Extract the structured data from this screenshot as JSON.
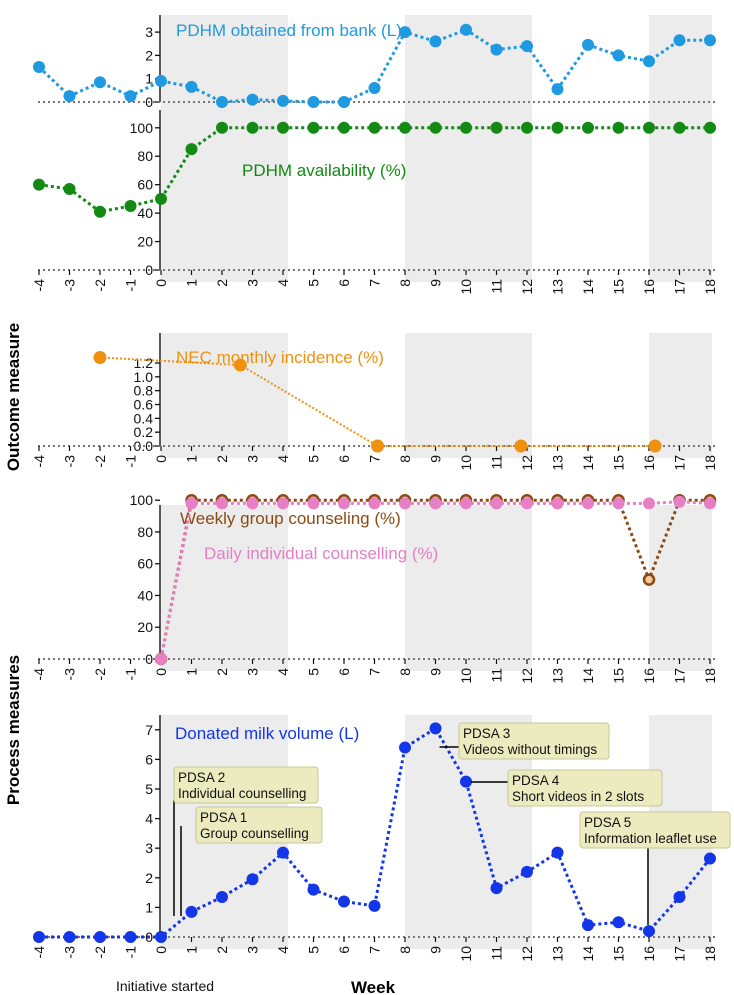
{
  "figure": {
    "ylabel_outcome": "Outcome measure",
    "ylabel_process": "Process measures",
    "xlabel": "Week",
    "initiative_label": "Initiative started",
    "x_ticks": [
      -4,
      -3,
      -2,
      -1,
      0,
      1,
      2,
      3,
      4,
      5,
      6,
      7,
      8,
      9,
      10,
      11,
      12,
      13,
      14,
      15,
      16,
      17,
      18
    ],
    "shaded_weeks": [
      [
        0,
        4
      ],
      [
        8,
        12
      ],
      [
        16,
        18
      ]
    ],
    "colors": {
      "shade": "#ececec",
      "pdhm_bank": "#1f9ae0",
      "pdhm_availability": "#138a13",
      "nec": "#f0900f",
      "weekly_group": "#8b4a12",
      "daily_individual": "#e67fc4",
      "donated": "#1336e8"
    }
  },
  "chart_data": [
    {
      "type": "line",
      "title": "PDHM obtained from bank (L)",
      "ylim": [
        0,
        3.6
      ],
      "y_ticks": [
        0,
        1,
        2,
        3
      ],
      "show_x_ticks": false,
      "series": [
        {
          "x": [
            -4,
            -3,
            -2,
            -1,
            0,
            1,
            2,
            3,
            4,
            5,
            6,
            7,
            8,
            9,
            10,
            11,
            12,
            13,
            14,
            15,
            16,
            17,
            18
          ],
          "values": [
            1.5,
            0.25,
            0.85,
            0.25,
            0.9,
            0.65,
            0.0,
            0.1,
            0.05,
            0.0,
            0.0,
            0.6,
            3.0,
            2.6,
            3.1,
            2.25,
            2.4,
            0.55,
            2.45,
            2.0,
            1.75,
            2.65,
            2.65
          ]
        }
      ]
    },
    {
      "type": "line",
      "title": "PDHM availability (%)",
      "ylim": [
        0,
        105
      ],
      "y_ticks": [
        0,
        20,
        40,
        60,
        80,
        100
      ],
      "show_x_ticks": true,
      "series": [
        {
          "x": [
            -4,
            -3,
            -2,
            -1,
            0,
            1,
            2,
            3,
            4,
            5,
            6,
            7,
            8,
            9,
            10,
            11,
            12,
            13,
            14,
            15,
            16,
            17,
            18
          ],
          "values": [
            60,
            57,
            41,
            45,
            50,
            85,
            100,
            100,
            100,
            100,
            100,
            100,
            100,
            100,
            100,
            100,
            100,
            100,
            100,
            100,
            100,
            100,
            100
          ]
        }
      ]
    },
    {
      "type": "line",
      "title": "NEC monthly incidence (%)",
      "ylim": [
        0,
        1.45
      ],
      "y_ticks": [
        0.0,
        0.2,
        0.4,
        0.6,
        0.8,
        1.0,
        1.2
      ],
      "y_tick_labels": [
        "0.0",
        "0.2",
        "0.4",
        "0.6",
        "0.8",
        "1.0",
        "1.2"
      ],
      "show_x_ticks": true,
      "series": [
        {
          "x": [
            -2,
            2.6,
            7.1,
            11.8,
            16.2
          ],
          "values": [
            1.28,
            1.17,
            0.0,
            0.0,
            0.0
          ]
        }
      ]
    },
    {
      "type": "line",
      "title": "Weekly group counseling (%)",
      "ylim": [
        0,
        105
      ],
      "y_ticks": [
        0,
        20,
        40,
        60,
        80,
        100
      ],
      "show_x_ticks": true,
      "series": [
        {
          "name": "Weekly group counseling (%)",
          "x": [
            0,
            1,
            2,
            3,
            4,
            5,
            6,
            7,
            8,
            9,
            10,
            11,
            12,
            13,
            14,
            15,
            16,
            17,
            18
          ],
          "values": [
            0,
            100,
            100,
            100,
            100,
            100,
            100,
            100,
            100,
            100,
            100,
            100,
            100,
            100,
            100,
            100,
            50,
            100,
            100
          ]
        },
        {
          "name": "Daily individual counselling (%)",
          "x": [
            0,
            1,
            2,
            3,
            4,
            5,
            6,
            7,
            8,
            9,
            10,
            11,
            12,
            13,
            14,
            15,
            16,
            17,
            18
          ],
          "values": [
            0,
            98,
            98,
            98,
            98,
            98,
            98,
            98,
            98,
            98,
            98,
            98,
            98,
            98,
            98,
            98,
            98,
            99,
            98
          ]
        }
      ]
    },
    {
      "type": "line",
      "title": "Donated milk volume (L)",
      "ylim": [
        0,
        7.4
      ],
      "y_ticks": [
        0,
        1,
        2,
        3,
        4,
        5,
        6,
        7
      ],
      "show_x_ticks": true,
      "series": [
        {
          "x": [
            -4,
            -3,
            -2,
            -1,
            0,
            1,
            2,
            3,
            4,
            5,
            6,
            7,
            8,
            9,
            10,
            11,
            12,
            13,
            14,
            15,
            16,
            17,
            18
          ],
          "values": [
            0,
            0,
            0,
            0,
            0,
            0.85,
            1.35,
            1.95,
            2.85,
            1.6,
            1.2,
            1.05,
            6.4,
            7.05,
            5.25,
            1.65,
            2.2,
            2.85,
            0.4,
            0.5,
            0.2,
            1.35,
            2.65
          ]
        }
      ],
      "annotations": [
        {
          "line1": "PDSA 1",
          "line2": "Group counselling",
          "week": 0.7
        },
        {
          "line1": "PDSA 2",
          "line2": "Individual counselling",
          "week": 0.3
        },
        {
          "line1": "PDSA 3",
          "line2": "Videos without timings",
          "week": 9
        },
        {
          "line1": "PDSA 4",
          "line2": "Short videos in 2 slots",
          "week": 10
        },
        {
          "line1": "PDSA 5",
          "line2": "Information leaflet use",
          "week": 16
        }
      ]
    }
  ]
}
